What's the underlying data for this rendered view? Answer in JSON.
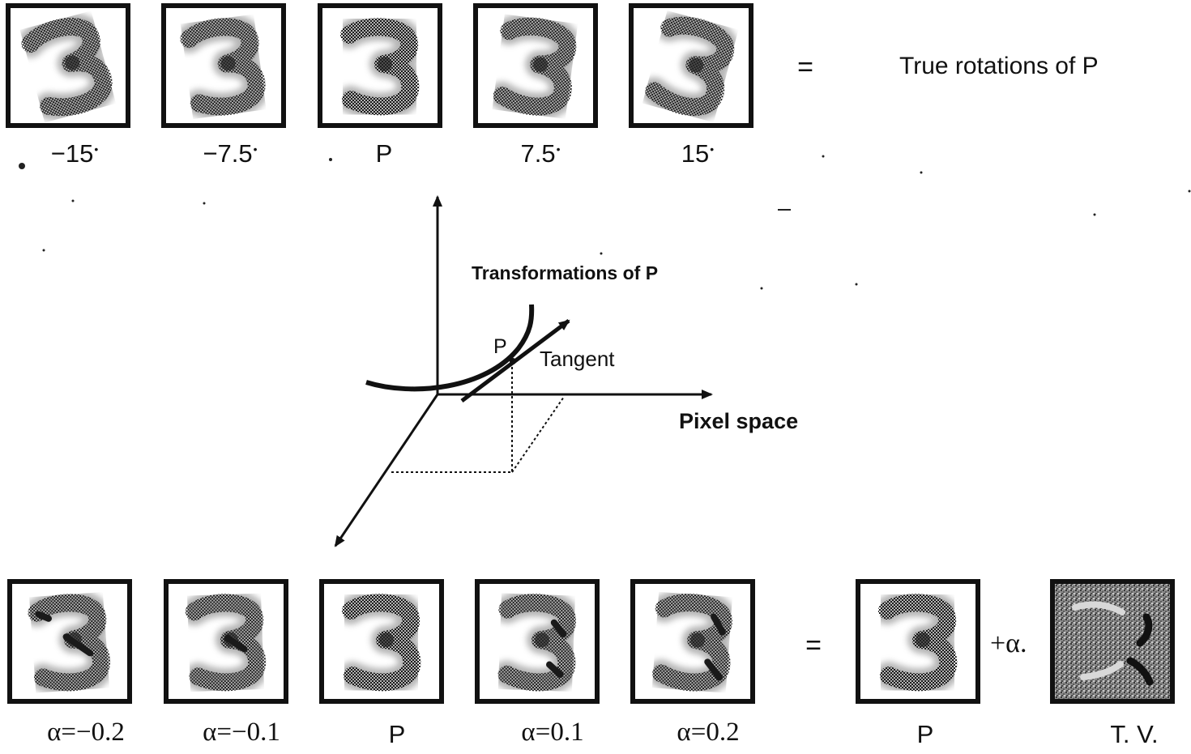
{
  "top_row": {
    "labels": [
      "−15",
      "−7.5",
      "P",
      "7.5",
      "15"
    ],
    "degree_mark": "•",
    "equals": "=",
    "caption": "True rotations of P",
    "rotations_deg": [
      -15,
      -7.5,
      0,
      7.5,
      15
    ]
  },
  "diagram": {
    "curve_label": "Transformations of P",
    "point_label": "P",
    "tangent_label": "Tangent",
    "axis_label": "Pixel space"
  },
  "bottom_row": {
    "labels": [
      "α=−0.2",
      "α=−0.1",
      "P",
      "α=0.1",
      "α=0.2"
    ],
    "alphas": [
      -0.2,
      -0.1,
      0,
      0.1,
      0.2
    ],
    "equals": "=",
    "result_label": "P",
    "operator": "+α.",
    "tangent_vector_label": "T. V."
  }
}
